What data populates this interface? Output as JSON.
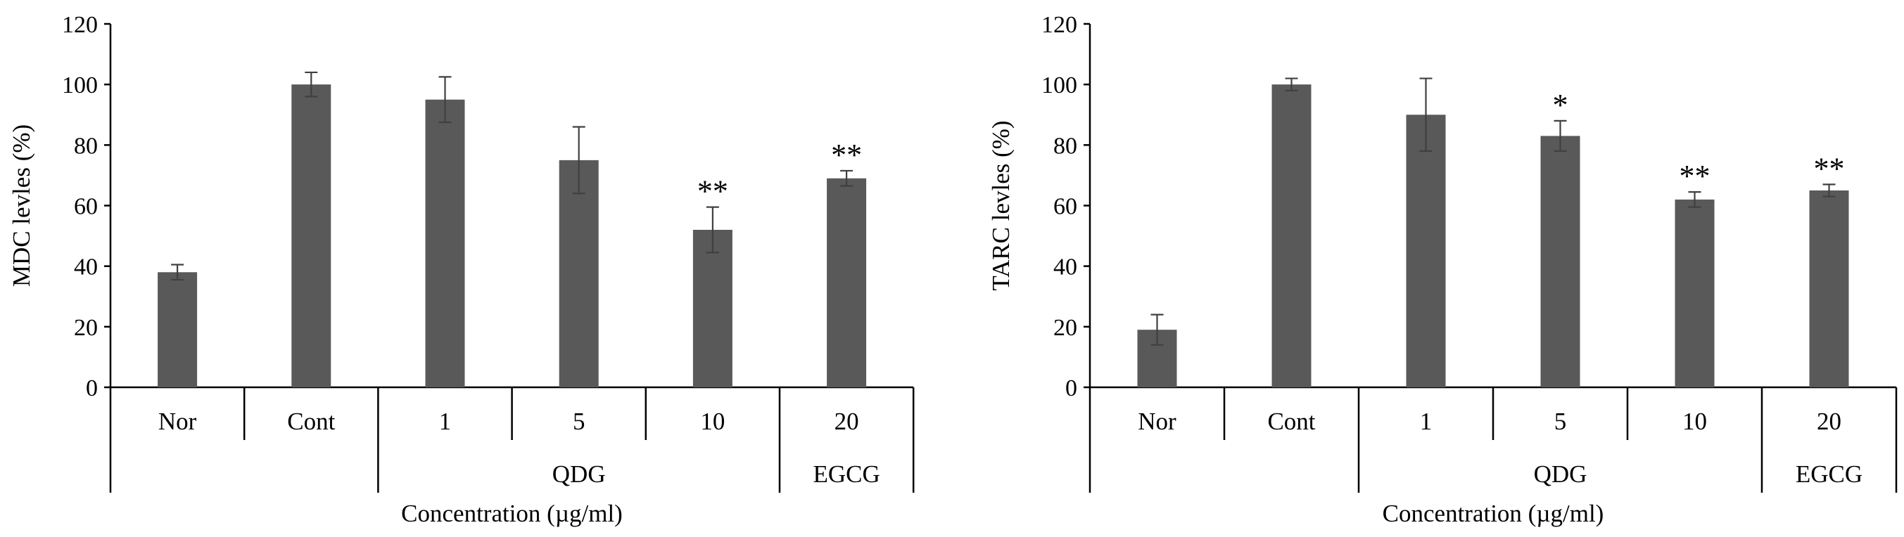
{
  "colors": {
    "bar": "#595959",
    "axis": "#000000",
    "error": "#404040"
  },
  "chart_data": [
    {
      "type": "bar",
      "ylabel": "MDC levles (%)",
      "xlabel": "Concentration (µg/ml)",
      "ylim": [
        0,
        120
      ],
      "yticks": [
        0,
        20,
        40,
        60,
        80,
        100,
        120
      ],
      "categories": [
        "Nor",
        "Cont",
        "1",
        "5",
        "10",
        "20"
      ],
      "groups": [
        {
          "label": "QDG",
          "span": [
            2,
            4
          ]
        },
        {
          "label": "EGCG",
          "span": [
            5,
            5
          ]
        }
      ],
      "values": [
        38,
        100,
        95,
        75,
        52,
        69
      ],
      "errors": [
        2.5,
        4,
        7.5,
        11,
        7.5,
        2.5
      ],
      "significance": [
        "",
        "",
        "",
        "",
        "**",
        "**"
      ],
      "grid": false,
      "legend": "none"
    },
    {
      "type": "bar",
      "ylabel": "TARC levles (%)",
      "xlabel": "Concentration (µg/ml)",
      "ylim": [
        0,
        120
      ],
      "yticks": [
        0,
        20,
        40,
        60,
        80,
        100,
        120
      ],
      "categories": [
        "Nor",
        "Cont",
        "1",
        "5",
        "10",
        "20"
      ],
      "groups": [
        {
          "label": "QDG",
          "span": [
            2,
            4
          ]
        },
        {
          "label": "EGCG",
          "span": [
            5,
            5
          ]
        }
      ],
      "values": [
        19,
        100,
        90,
        83,
        62,
        65
      ],
      "errors": [
        5,
        2,
        12,
        5,
        2.5,
        2
      ],
      "significance": [
        "",
        "",
        "",
        "*",
        "**",
        "**"
      ],
      "grid": false,
      "legend": "none"
    }
  ]
}
